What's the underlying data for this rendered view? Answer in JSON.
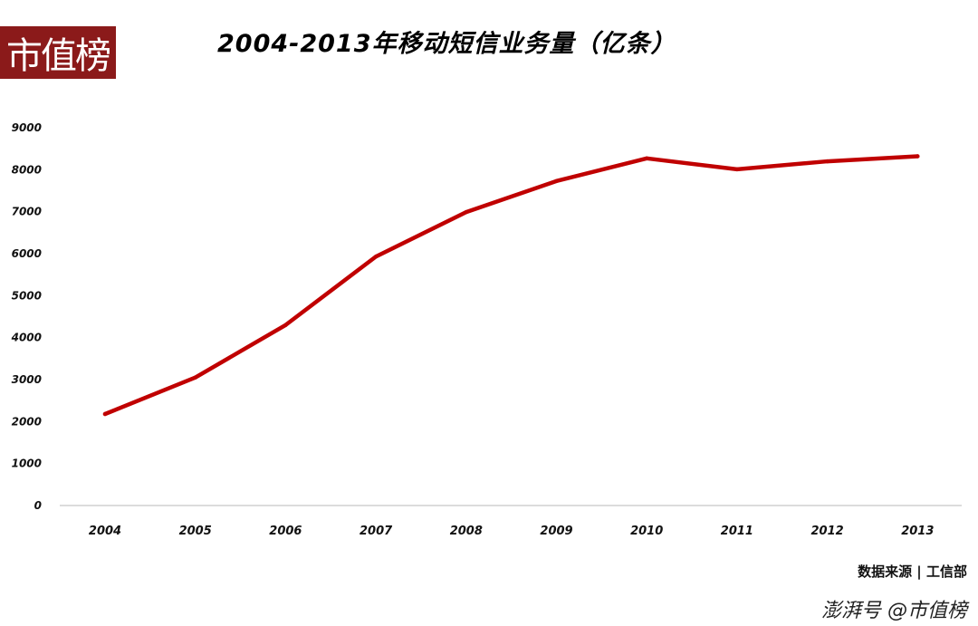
{
  "logo_text": "市值榜",
  "watermark": "澎湃号 @市值榜",
  "chart_data": {
    "type": "line",
    "title": "2004-2013年移动短信业务量（亿条）",
    "source": "数据来源 | 工信部",
    "xlabel": "",
    "ylabel": "",
    "x": [
      "2004",
      "2005",
      "2006",
      "2007",
      "2008",
      "2009",
      "2010",
      "2011",
      "2012",
      "2013"
    ],
    "series": [
      {
        "values": [
          2180,
          3050,
          4300,
          5930,
          6990,
          7730,
          8270,
          8010,
          8200,
          8320
        ]
      }
    ],
    "ylim": [
      0,
      9000
    ],
    "yticks": [
      0,
      1000,
      2000,
      3000,
      4000,
      5000,
      6000,
      7000,
      8000,
      9000
    ],
    "grid": false,
    "line_color": "#c00000"
  }
}
